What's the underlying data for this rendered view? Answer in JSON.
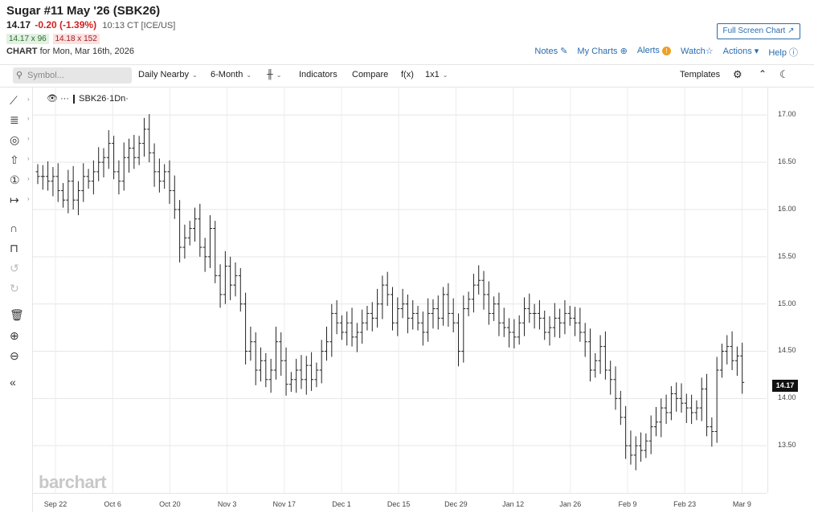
{
  "header": {
    "title": "Sugar #11 May '26 (SBK26)",
    "last": "14.17",
    "change": "-0.20 (-1.39%)",
    "time": "10:13 CT [ICE/US]",
    "bid": "14.17 x 96",
    "ask": "14.18 x 152",
    "chart_label": "CHART",
    "chart_date": "for Mon, Mar 16th, 2026",
    "fullscreen": "Full Screen Chart",
    "links": [
      "Notes",
      "My Charts",
      "Alerts",
      "Watch",
      "Actions",
      "Help"
    ]
  },
  "toolbar": {
    "symbol_placeholder": "Symbol...",
    "period": "Daily Nearby",
    "range": "6-Month",
    "indicators": "Indicators",
    "compare": "Compare",
    "fx": "f(x)",
    "layout": "1x1",
    "templates": "Templates"
  },
  "legend": {
    "symbol": "SBK26",
    "interval": "1Dn"
  },
  "watermark": "barchart",
  "current_price": "14.17",
  "colors": {
    "accent": "#2a6db0",
    "down": "#d21f1f",
    "bar": "#222222"
  },
  "chart_data": {
    "type": "ohlc",
    "y_ticks": [
      "17.00",
      "16.50",
      "16.00",
      "15.50",
      "15.00",
      "14.50",
      "14.00",
      "13.50"
    ],
    "ylim": [
      13.0,
      17.3
    ],
    "x_ticks": [
      "Sep 22",
      "Oct 6",
      "Oct 20",
      "Nov 3",
      "Nov 17",
      "Dec 1",
      "Dec 15",
      "Dec 29",
      "Jan 12",
      "Jan 26",
      "Feb 9",
      "Feb 23",
      "Mar 9"
    ],
    "close": [
      16.35,
      16.35,
      16.3,
      16.35,
      16.2,
      16.1,
      16.3,
      16.1,
      16.2,
      16.35,
      16.3,
      16.4,
      16.5,
      16.55,
      16.7,
      16.4,
      16.3,
      16.55,
      16.65,
      16.55,
      16.7,
      16.85,
      16.6,
      16.4,
      16.3,
      16.4,
      16.2,
      16.0,
      15.6,
      15.7,
      15.8,
      15.9,
      15.6,
      15.5,
      15.8,
      15.3,
      15.1,
      15.4,
      15.2,
      15.3,
      15.0,
      14.5,
      14.6,
      14.3,
      14.4,
      14.2,
      14.3,
      14.6,
      14.4,
      14.15,
      14.2,
      14.3,
      14.2,
      14.35,
      14.2,
      14.3,
      14.5,
      14.6,
      14.9,
      14.8,
      14.7,
      14.8,
      14.65,
      14.7,
      14.8,
      14.9,
      14.85,
      15.0,
      15.2,
      15.1,
      14.8,
      14.95,
      15.0,
      14.85,
      14.9,
      14.8,
      14.7,
      14.9,
      14.95,
      14.85,
      15.1,
      14.9,
      14.8,
      14.5,
      14.95,
      15.05,
      15.2,
      15.25,
      15.1,
      14.9,
      15.0,
      14.8,
      14.75,
      14.7,
      14.65,
      14.8,
      14.95,
      14.9,
      14.9,
      14.85,
      14.7,
      14.75,
      14.85,
      14.8,
      14.9,
      14.85,
      14.8,
      14.7,
      14.6,
      14.3,
      14.4,
      14.55,
      14.3,
      14.2,
      14.0,
      13.8,
      13.5,
      13.4,
      13.5,
      13.45,
      13.55,
      13.7,
      13.75,
      13.9,
      13.85,
      14.05,
      14.0,
      13.95,
      13.9,
      13.85,
      13.9,
      14.1,
      13.7,
      13.65,
      14.3,
      14.5,
      14.55,
      14.4,
      14.45,
      14.17
    ]
  }
}
